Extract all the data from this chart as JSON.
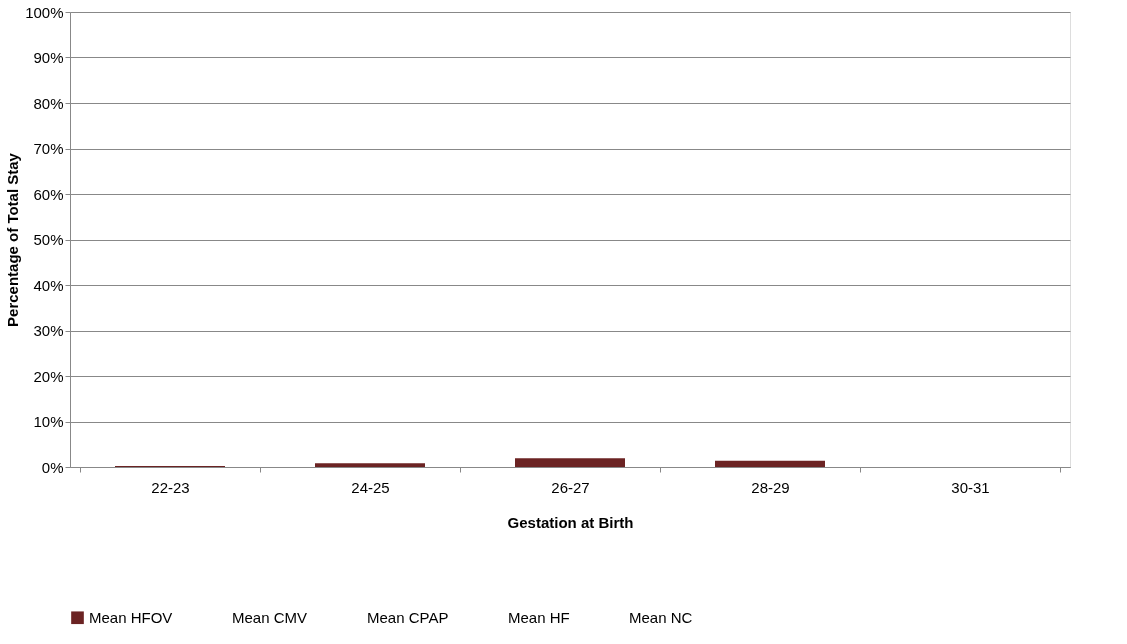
{
  "chart_data": {
    "type": "bar",
    "xlabel": "Gestation at Birth",
    "ylabel": "Percentage of Total Stay",
    "categories": [
      "22-23",
      "24-25",
      "26-27",
      "28-29",
      "30-31"
    ],
    "series": [
      {
        "name": "Mean HFOV",
        "color": "#6b2323",
        "values": [
          0.2,
          0.8,
          1.9,
          1.4,
          0
        ]
      },
      {
        "name": "Mean CMV",
        "values": [
          null,
          null,
          null,
          null,
          null
        ]
      },
      {
        "name": "Mean CPAP",
        "values": [
          null,
          null,
          null,
          null,
          null
        ]
      },
      {
        "name": "Mean HF",
        "values": [
          null,
          null,
          null,
          null,
          null
        ]
      },
      {
        "name": "Mean NC",
        "values": [
          null,
          null,
          null,
          null,
          null
        ]
      }
    ],
    "ylim": [
      0,
      100
    ],
    "yticks": [
      {
        "value": 0,
        "label": "0%"
      },
      {
        "value": 10,
        "label": "10%"
      },
      {
        "value": 20,
        "label": "20%"
      },
      {
        "value": 30,
        "label": "30%"
      },
      {
        "value": 40,
        "label": "40%"
      },
      {
        "value": 50,
        "label": "50%"
      },
      {
        "value": 60,
        "label": "60%"
      },
      {
        "value": 70,
        "label": "70%"
      },
      {
        "value": 80,
        "label": "80%"
      },
      {
        "value": 90,
        "label": "90%"
      },
      {
        "value": 100,
        "label": "100%"
      }
    ],
    "grid": "y",
    "legend": "bottom"
  }
}
